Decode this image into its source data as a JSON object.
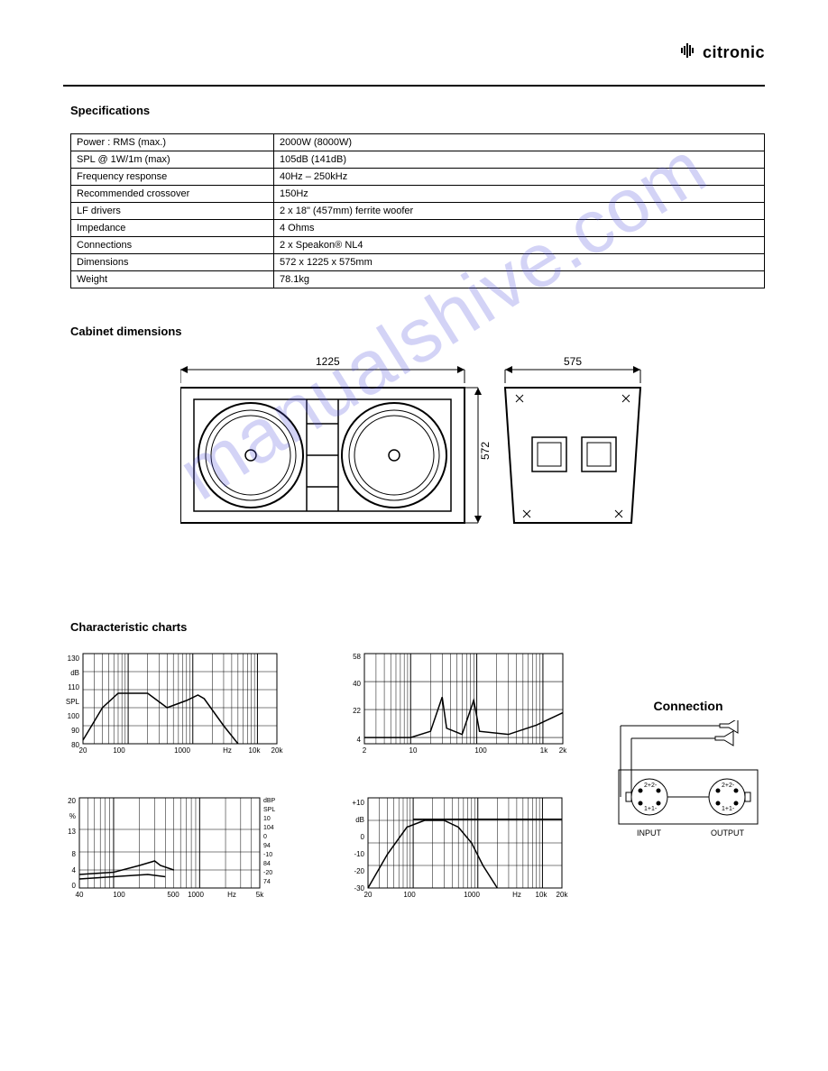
{
  "header": {
    "brand": "citronic"
  },
  "sections": {
    "spec_title": "Specifications",
    "dim_title": "Cabinet dimensions",
    "chart_title": "Characteristic charts"
  },
  "spec_table": {
    "rows": [
      [
        "Power : RMS (max.)",
        "2000W (8000W)"
      ],
      [
        "SPL @ 1W/1m (max)",
        "105dB (141dB)"
      ],
      [
        "Frequency response",
        "40Hz – 250kHz"
      ],
      [
        "Recommended crossover",
        "150Hz"
      ],
      [
        "LF drivers",
        "2 x 18\" (457mm) ferrite woofer"
      ],
      [
        "Impedance",
        "4 Ohms"
      ],
      [
        "Connections",
        "2 x Speakon® NL4"
      ],
      [
        "Dimensions",
        "572 x 1225 x 575mm"
      ],
      [
        "Weight",
        "78.1kg"
      ]
    ]
  },
  "dimensions_diagram": {
    "front_width": "1225",
    "side_depth": "575",
    "height": "572"
  },
  "connection": {
    "title": "Connection",
    "input_label": "INPUT",
    "output_label": "OUTPUT",
    "pin_labels": [
      "1+",
      "1-",
      "2+",
      "2-"
    ]
  },
  "watermark": {
    "text": "manualshive.com"
  },
  "charts": {
    "frequency_response": {
      "type": "line",
      "xscale": "log",
      "xlim": [
        20,
        20000
      ],
      "ylim": [
        80,
        130
      ],
      "y_ticks": [
        "130",
        "dB",
        "110",
        "SPL",
        "100",
        "90",
        "80"
      ],
      "x_ticks": [
        "20",
        "100",
        "1000",
        "Hz",
        "10k",
        "20k"
      ],
      "curve": [
        [
          20,
          82
        ],
        [
          40,
          100
        ],
        [
          70,
          108
        ],
        [
          200,
          108
        ],
        [
          400,
          100
        ],
        [
          800,
          104
        ],
        [
          1200,
          107
        ],
        [
          1500,
          105
        ],
        [
          3000,
          90
        ],
        [
          5000,
          80
        ]
      ],
      "line_color": "#000000",
      "grid_color": "#000000",
      "bg": "#ffffff"
    },
    "impedance": {
      "type": "line",
      "xscale": "log",
      "xlim": [
        2,
        2000
      ],
      "ylim": [
        0,
        58
      ],
      "y_ticks": [
        "58",
        "40",
        "22",
        "4"
      ],
      "x_ticks": [
        "2",
        "10",
        "100",
        "1k",
        "2k"
      ],
      "curve": [
        [
          2,
          4
        ],
        [
          10,
          4
        ],
        [
          20,
          8
        ],
        [
          30,
          30
        ],
        [
          35,
          10
        ],
        [
          60,
          6
        ],
        [
          90,
          28
        ],
        [
          110,
          8
        ],
        [
          300,
          6
        ],
        [
          800,
          12
        ],
        [
          2000,
          20
        ]
      ],
      "line_color": "#000000",
      "grid_color": "#000000",
      "bg": "#ffffff"
    },
    "distortion": {
      "type": "line",
      "xscale": "log",
      "xlim": [
        40,
        5000
      ],
      "ylim_left": [
        0,
        20
      ],
      "ylim_right": [
        74,
        130
      ],
      "y_left_ticks": [
        "20",
        "%",
        "13",
        "8",
        "4",
        "0"
      ],
      "y_right_ticks": [
        "dBP",
        "SPL",
        "10",
        "104",
        "0",
        "94",
        "-10",
        "84",
        "-20",
        "74"
      ],
      "x_ticks": [
        "40",
        "100",
        "500",
        "1000",
        "Hz",
        "5k"
      ],
      "curves": [
        [
          [
            40,
            3
          ],
          [
            100,
            3.5
          ],
          [
            200,
            5
          ],
          [
            300,
            6
          ],
          [
            350,
            5
          ],
          [
            500,
            4
          ]
        ],
        [
          [
            40,
            2
          ],
          [
            100,
            2.5
          ],
          [
            250,
            3
          ],
          [
            400,
            2.5
          ]
        ]
      ],
      "line_color": "#000000",
      "grid_color": "#000000",
      "bg": "#ffffff"
    },
    "phase": {
      "type": "line",
      "xscale": "log",
      "xlim": [
        20,
        20000
      ],
      "ylim": [
        -30,
        10
      ],
      "y_ticks": [
        "+10",
        "dB",
        "0",
        "-10",
        "-20",
        "-30"
      ],
      "x_ticks": [
        "20",
        "100",
        "1000",
        "Hz",
        "10k",
        "20k"
      ],
      "curve": [
        [
          20,
          -30
        ],
        [
          40,
          -15
        ],
        [
          80,
          -3
        ],
        [
          150,
          0
        ],
        [
          300,
          0
        ],
        [
          500,
          -3
        ],
        [
          800,
          -10
        ],
        [
          1200,
          -20
        ],
        [
          2000,
          -30
        ]
      ],
      "flat_line": [
        [
          100,
          0.5
        ],
        [
          20000,
          0.5
        ]
      ],
      "line_color": "#000000",
      "grid_color": "#000000",
      "bg": "#ffffff"
    }
  }
}
